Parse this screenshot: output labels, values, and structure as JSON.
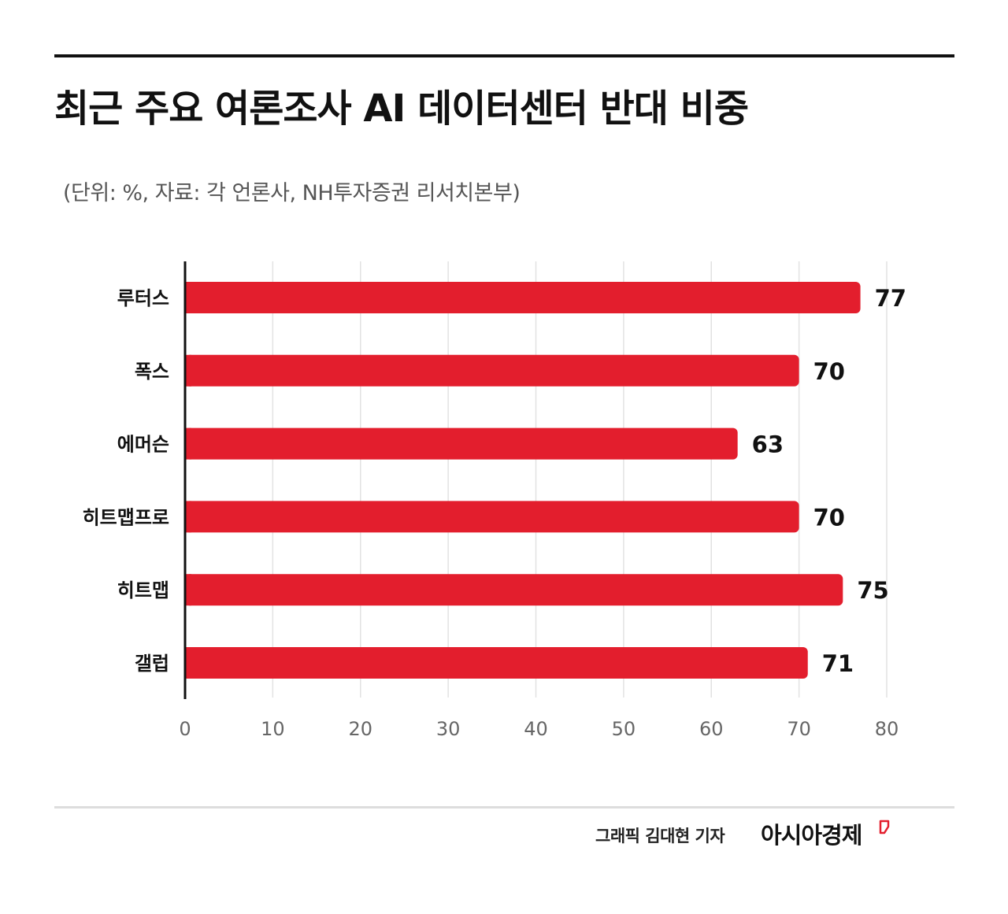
{
  "header": {
    "title": "최근 주요 여론조사 AI 데이터센터 반대 비중",
    "source_note": "(단위: %, 자료: 각 언론사, NH투자증권 리서치본부)"
  },
  "chart_data": {
    "type": "bar",
    "orientation": "horizontal",
    "categories": [
      "루터스",
      "폭스",
      "에머슨",
      "히트맵프로",
      "히트맵",
      "갤럽"
    ],
    "values": [
      77,
      70,
      63,
      70,
      75,
      71
    ],
    "xlim": [
      0,
      80
    ],
    "x_ticks": [
      0,
      10,
      20,
      30,
      40,
      50,
      60,
      70,
      80
    ],
    "grid": "vertical",
    "bar_color": "#e31e2d",
    "data_labels": true
  },
  "footer": {
    "credit": "그래픽  김대현 기자",
    "brand": "아시아경제"
  },
  "colors": {
    "accent": "#e31e2d",
    "text": "#111111",
    "grid": "#e2e2e2",
    "muted": "#555555"
  }
}
